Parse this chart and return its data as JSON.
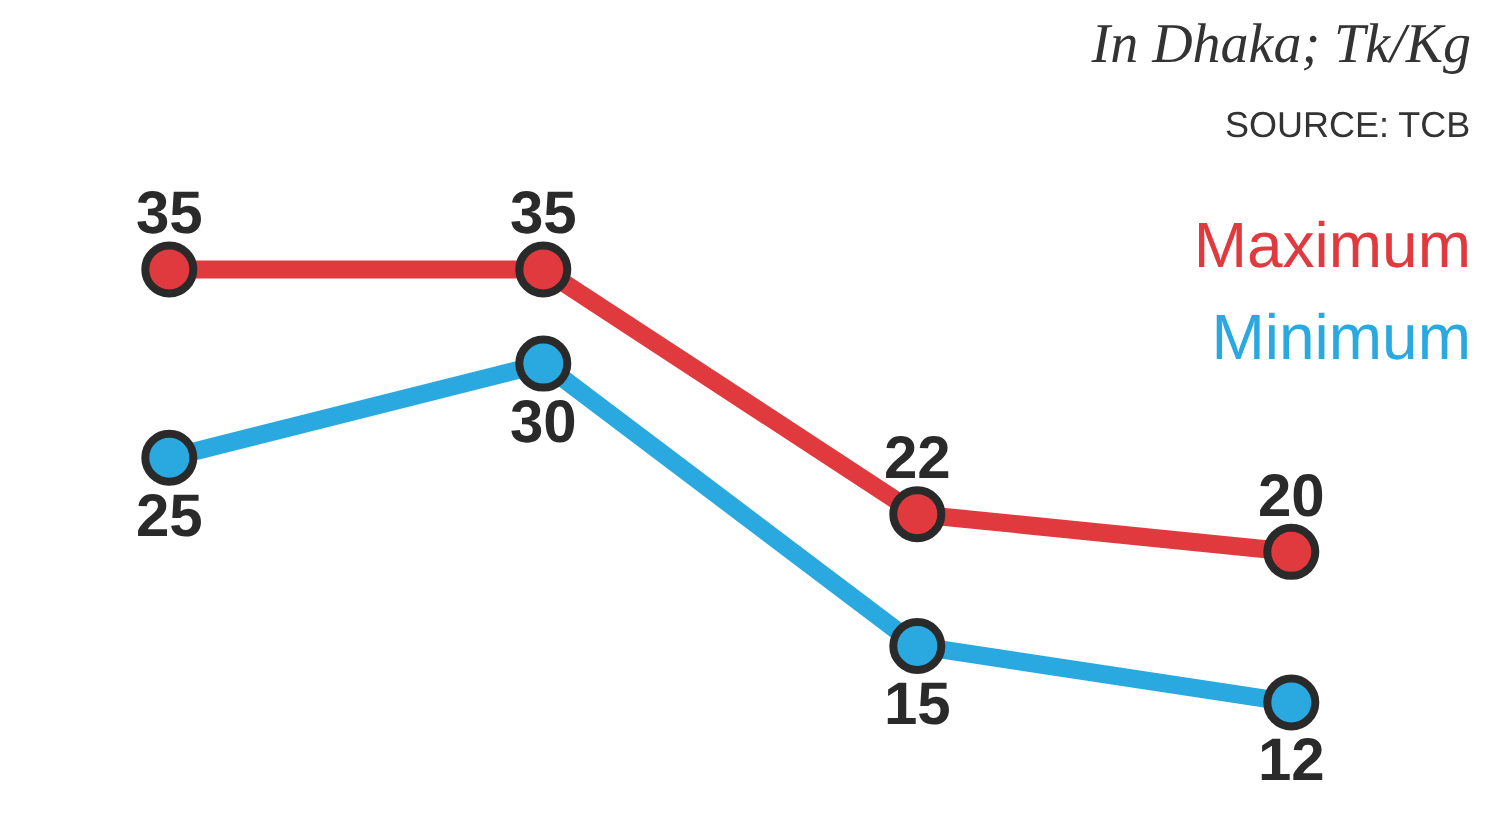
{
  "chart_data": {
    "type": "line",
    "categories": [
      null,
      null,
      null,
      null
    ],
    "series": [
      {
        "name": "Maximum",
        "color": "#e0393e",
        "values": [
          35,
          35,
          22,
          20
        ]
      },
      {
        "name": "Minimum",
        "color": "#29a9e0",
        "values": [
          25,
          30,
          15,
          12
        ]
      }
    ],
    "data_labels": true,
    "marker": "circle",
    "line_style": "solid",
    "legend": "top right",
    "tick_labels": false,
    "grid": false,
    "annotations": [
      "In Dhaka; Tk/Kg",
      "SOURCE: TCB"
    ]
  }
}
